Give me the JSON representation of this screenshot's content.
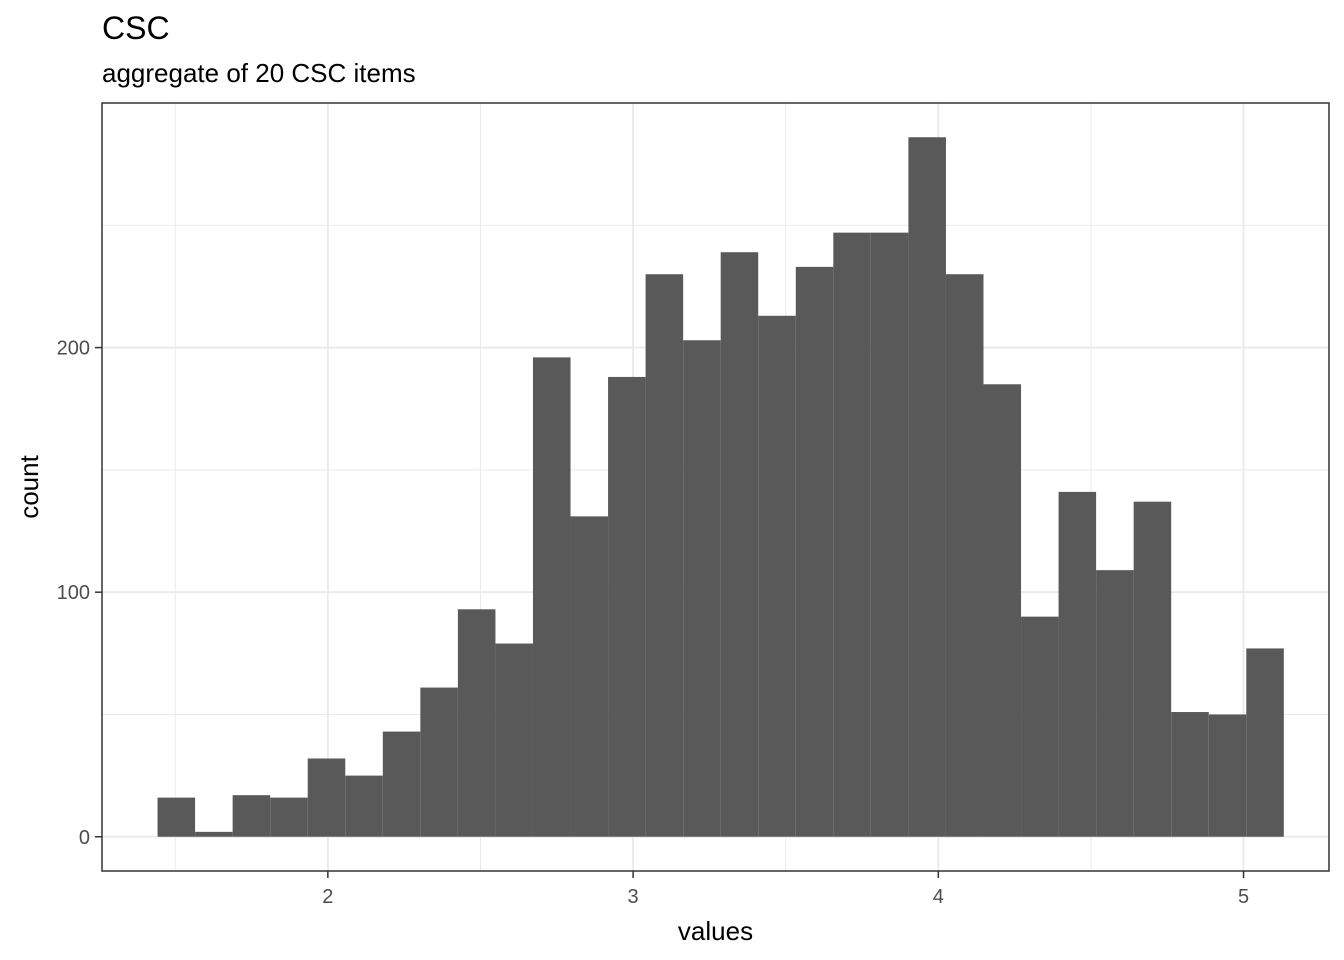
{
  "chart_data": {
    "type": "histogram",
    "title": "CSC",
    "subtitle": "aggregate of 20 CSC items",
    "xlabel": "values",
    "ylabel": "count",
    "bin_width": 0.123,
    "bins": [
      {
        "x0": 1.442,
        "x1": 1.565,
        "count": 16
      },
      {
        "x0": 1.565,
        "x1": 1.688,
        "count": 2
      },
      {
        "x0": 1.688,
        "x1": 1.811,
        "count": 17
      },
      {
        "x0": 1.811,
        "x1": 1.934,
        "count": 16
      },
      {
        "x0": 1.934,
        "x1": 2.057,
        "count": 32
      },
      {
        "x0": 2.057,
        "x1": 2.18,
        "count": 25
      },
      {
        "x0": 2.18,
        "x1": 2.303,
        "count": 43
      },
      {
        "x0": 2.303,
        "x1": 2.426,
        "count": 61
      },
      {
        "x0": 2.426,
        "x1": 2.549,
        "count": 93
      },
      {
        "x0": 2.549,
        "x1": 2.672,
        "count": 79
      },
      {
        "x0": 2.672,
        "x1": 2.795,
        "count": 196
      },
      {
        "x0": 2.795,
        "x1": 2.918,
        "count": 131
      },
      {
        "x0": 2.918,
        "x1": 3.041,
        "count": 188
      },
      {
        "x0": 3.041,
        "x1": 3.164,
        "count": 230
      },
      {
        "x0": 3.164,
        "x1": 3.287,
        "count": 203
      },
      {
        "x0": 3.287,
        "x1": 3.41,
        "count": 239
      },
      {
        "x0": 3.41,
        "x1": 3.533,
        "count": 213
      },
      {
        "x0": 3.533,
        "x1": 3.656,
        "count": 233
      },
      {
        "x0": 3.656,
        "x1": 3.779,
        "count": 247
      },
      {
        "x0": 3.779,
        "x1": 3.902,
        "count": 247
      },
      {
        "x0": 3.902,
        "x1": 4.025,
        "count": 286
      },
      {
        "x0": 4.025,
        "x1": 4.148,
        "count": 230
      },
      {
        "x0": 4.148,
        "x1": 4.271,
        "count": 185
      },
      {
        "x0": 4.271,
        "x1": 4.394,
        "count": 90
      },
      {
        "x0": 4.394,
        "x1": 4.517,
        "count": 141
      },
      {
        "x0": 4.517,
        "x1": 4.64,
        "count": 109
      },
      {
        "x0": 4.64,
        "x1": 4.763,
        "count": 137
      },
      {
        "x0": 4.763,
        "x1": 4.886,
        "count": 51
      },
      {
        "x0": 4.886,
        "x1": 5.009,
        "count": 50
      },
      {
        "x0": 5.009,
        "x1": 5.132,
        "count": 77
      }
    ],
    "xlim": [
      1.26,
      5.28
    ],
    "ylim": [
      -14,
      300
    ],
    "x_ticks": [
      2,
      3,
      4,
      5
    ],
    "y_ticks": [
      0,
      100,
      200
    ],
    "x_minor_gridlines": [
      1.5,
      2.5,
      3.5,
      4.5
    ],
    "y_minor_gridlines": [
      50,
      150,
      250
    ],
    "grid": true,
    "bar_color": "#595959",
    "panel_border_color": "#333333",
    "gridline_color": "#ebebeb",
    "background": "#ffffff"
  }
}
